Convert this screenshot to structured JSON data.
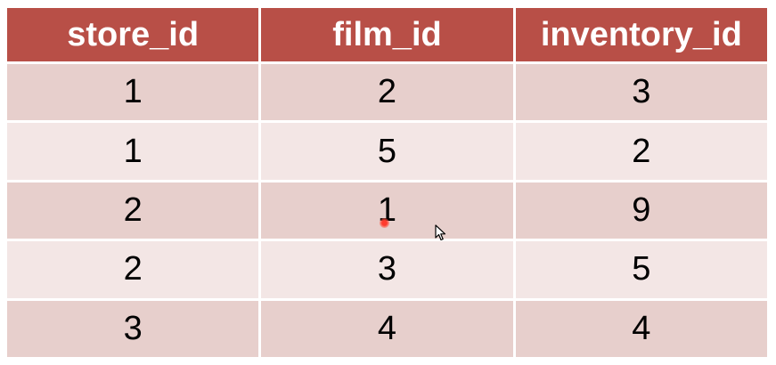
{
  "table": {
    "columns": [
      "store_id",
      "film_id",
      "inventory_id"
    ],
    "rows": [
      [
        "1",
        "2",
        "3"
      ],
      [
        "1",
        "5",
        "2"
      ],
      [
        "2",
        "1",
        "9"
      ],
      [
        "2",
        "3",
        "5"
      ],
      [
        "3",
        "4",
        "4"
      ]
    ]
  },
  "colors": {
    "header_bg": "#b84f47",
    "row_odd_bg": "#e7cfcc",
    "row_even_bg": "#f3e6e5"
  },
  "overlays": {
    "laser_pointer": "laser-pointer-dot",
    "mouse_cursor": "arrow-cursor-icon"
  }
}
